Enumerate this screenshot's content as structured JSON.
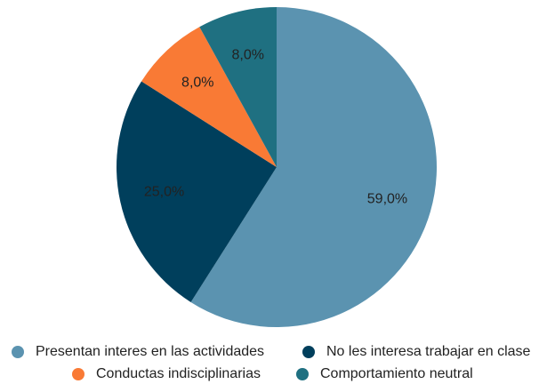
{
  "chart_data": {
    "type": "pie",
    "categories": [
      "Presentan interes en las actividades",
      "No les interesa trabajar en clase",
      "Conductas indisciplinarias",
      "Comportamiento neutral"
    ],
    "values": [
      59,
      25,
      8,
      8
    ],
    "value_labels": [
      "59,0%",
      "25,0%",
      "8,0%",
      "8,0%"
    ],
    "colors": [
      "#5b93b0",
      "#003f5c",
      "#f97a35",
      "#1f7081"
    ],
    "legend": "bottom"
  }
}
